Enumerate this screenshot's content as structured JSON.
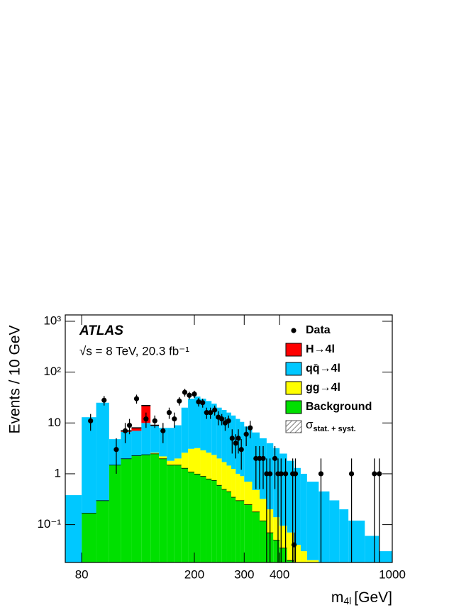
{
  "chart_data": {
    "type": "stacked_histogram",
    "experiment": "ATLAS",
    "energy_label": "√s = 8 TeV, 20.3 fb⁻¹",
    "y_label": "Events / 10 GeV",
    "x_label": {
      "main": "m",
      "sub": "4l",
      "unit": "[GeV]"
    },
    "log_x": true,
    "log_y": true,
    "xlim": [
      70,
      1000
    ],
    "ylim": [
      0.018,
      1333
    ],
    "xticks": [
      80,
      200,
      300,
      400,
      1000
    ],
    "yticks": [
      {
        "value": 0.1,
        "label": "10⁻¹"
      },
      1,
      10,
      {
        "value": 100,
        "label": "10²"
      },
      {
        "value": 1000,
        "label": "10³"
      }
    ],
    "bins": [
      70,
      80,
      90,
      100,
      110,
      120,
      130,
      140,
      150,
      160,
      170,
      180,
      190,
      200,
      210,
      220,
      230,
      240,
      250,
      260,
      270,
      280,
      290,
      300,
      320,
      340,
      360,
      380,
      400,
      425,
      450,
      475,
      500,
      550,
      600,
      650,
      700,
      800,
      900,
      1000
    ],
    "series": [
      {
        "name": "Background",
        "color": "#00e000",
        "values": [
          0,
          0.17,
          0.3,
          1.5,
          2.0,
          2.3,
          2.4,
          2.5,
          2.0,
          1.5,
          1.5,
          1.3,
          1.1,
          1.0,
          0.9,
          0.8,
          0.75,
          0.6,
          0.5,
          0.45,
          0.35,
          0.3,
          0.3,
          0.25,
          0.18,
          0.12,
          0.07,
          0.05,
          0.035,
          0.02,
          0,
          0,
          0,
          0,
          0,
          0,
          0,
          0,
          0
        ]
      },
      {
        "name": "gg→4l",
        "color": "#ffff00",
        "values": [
          0,
          0,
          0,
          0,
          0,
          0,
          0,
          0.1,
          0.2,
          0.3,
          0.5,
          1.3,
          2.0,
          2.2,
          2.0,
          1.8,
          1.6,
          1.4,
          1.2,
          1.0,
          0.9,
          0.7,
          0.6,
          0.45,
          0.3,
          0.2,
          0.13,
          0.09,
          0.06,
          0.05,
          0.04,
          0.03,
          0.02,
          0,
          0,
          0,
          0,
          0,
          0
        ]
      },
      {
        "name": "qq̄→4l",
        "color": "#00c8ff",
        "values": [
          0.38,
          12.8,
          24.7,
          3.3,
          4.7,
          4.7,
          7.6,
          6.1,
          5.8,
          6.2,
          7,
          17.4,
          26.9,
          29.8,
          27.1,
          24.4,
          21.65,
          18,
          16.3,
          14.55,
          12.75,
          11,
          9.6,
          7.8,
          6.02,
          4.68,
          3.8,
          3.06,
          2.4,
          1.73,
          1.26,
          0.97,
          0.68,
          0.45,
          0.3,
          0.2,
          0.12,
          0.06,
          0.03
        ]
      },
      {
        "name": "H→4l",
        "color": "#ff0000",
        "values": [
          0,
          0,
          0,
          0,
          0.3,
          1.0,
          12,
          0.3,
          0,
          0,
          0,
          0,
          0,
          0,
          0,
          0,
          0,
          0,
          0,
          0,
          0,
          0,
          0,
          0,
          0,
          0,
          0,
          0,
          0,
          0,
          0,
          0,
          0,
          0,
          0,
          0,
          0,
          0,
          0
        ]
      }
    ],
    "data": {
      "name": "Data",
      "x": [
        86,
        96,
        106,
        114,
        118,
        125,
        135,
        145,
        155,
        163,
        170,
        177,
        185,
        192,
        200,
        207,
        214,
        221,
        228,
        236,
        243,
        250,
        257,
        264,
        272,
        280,
        286,
        293,
        305,
        315,
        330,
        340,
        350,
        360,
        370,
        385,
        395,
        405,
        420,
        445,
        450,
        455,
        560,
        718,
        865,
        900
      ],
      "values": [
        11,
        28,
        3,
        7,
        9,
        30,
        12,
        11,
        7,
        16,
        12,
        27,
        40,
        35,
        37,
        26,
        25,
        16,
        16,
        18,
        13,
        12,
        10,
        11,
        5,
        4,
        5,
        3,
        6,
        8,
        2,
        2,
        2,
        1,
        1,
        2,
        1,
        1,
        1,
        1,
        0.04,
        1,
        1,
        1,
        1,
        1
      ],
      "errors": [
        4,
        6,
        2,
        3,
        3,
        6,
        4,
        3,
        3,
        4,
        4,
        5,
        7,
        6,
        6,
        5,
        5,
        4,
        4,
        4,
        4,
        3,
        3,
        3,
        2.5,
        2,
        2.5,
        1.8,
        2.5,
        3,
        1.5,
        1.5,
        1.5,
        1,
        1,
        1.5,
        1,
        1,
        1,
        1,
        0.03,
        1,
        1,
        1,
        1,
        1
      ]
    },
    "uncertainty_label": {
      "symbol": "σ",
      "sub": "stat. + syst."
    }
  }
}
